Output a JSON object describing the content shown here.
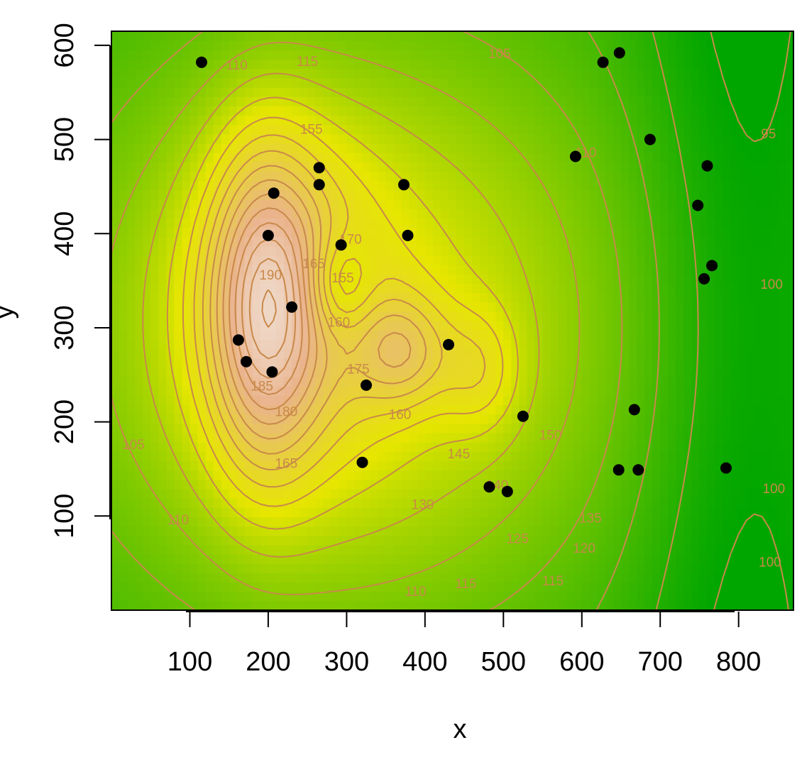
{
  "chart_data": {
    "type": "heatmap",
    "subtype": "filled contour with scatter points",
    "xlabel": "x",
    "ylabel": "y",
    "xlim": [
      0,
      870
    ],
    "ylim": [
      0,
      615
    ],
    "x_ticks": [
      100,
      200,
      300,
      400,
      500,
      600,
      700,
      800
    ],
    "y_ticks": [
      100,
      200,
      300,
      400,
      500,
      600
    ],
    "x_tick_labels": [
      "100",
      "200",
      "300",
      "400",
      "500",
      "600",
      "700",
      "800"
    ],
    "y_tick_labels": [
      "100",
      "200",
      "300",
      "400",
      "500",
      "600"
    ],
    "color_scale": [
      "#00a600",
      "#e6e600",
      "#eab38c",
      "#f2f2f2"
    ],
    "contour_color": "#c8894a",
    "peaks": [
      {
        "x": 195,
        "y": 320,
        "value": 193,
        "sx": 45,
        "sy": 115
      },
      {
        "x": 290,
        "y": 345,
        "value": 155,
        "sx": 30,
        "sy": 38,
        "dip": true
      },
      {
        "x": 370,
        "y": 275,
        "value": 176,
        "sx": 40,
        "sy": 40
      },
      {
        "x": 470,
        "y": 255,
        "value": 165,
        "sx": 35,
        "sy": 45
      }
    ],
    "contour_labels": [
      {
        "text": "110",
        "x": 160,
        "y": 578
      },
      {
        "text": "115",
        "x": 250,
        "y": 582
      },
      {
        "text": "105",
        "x": 495,
        "y": 590
      },
      {
        "text": "155",
        "x": 255,
        "y": 510
      },
      {
        "text": "110",
        "x": 605,
        "y": 485
      },
      {
        "text": "95",
        "x": 838,
        "y": 505
      },
      {
        "text": "170",
        "x": 305,
        "y": 393
      },
      {
        "text": "165",
        "x": 258,
        "y": 367
      },
      {
        "text": "190",
        "x": 203,
        "y": 355
      },
      {
        "text": "155",
        "x": 295,
        "y": 352
      },
      {
        "text": "100",
        "x": 842,
        "y": 345
      },
      {
        "text": "160",
        "x": 290,
        "y": 305
      },
      {
        "text": "175",
        "x": 315,
        "y": 255
      },
      {
        "text": "185",
        "x": 192,
        "y": 237
      },
      {
        "text": "180",
        "x": 223,
        "y": 210
      },
      {
        "text": "160",
        "x": 368,
        "y": 207
      },
      {
        "text": "150",
        "x": 560,
        "y": 185
      },
      {
        "text": "145",
        "x": 443,
        "y": 165
      },
      {
        "text": "165",
        "x": 223,
        "y": 155
      },
      {
        "text": "140",
        "x": 492,
        "y": 132
      },
      {
        "text": "105",
        "x": 28,
        "y": 175
      },
      {
        "text": "130",
        "x": 397,
        "y": 111
      },
      {
        "text": "100",
        "x": 845,
        "y": 128
      },
      {
        "text": "110",
        "x": 85,
        "y": 95
      },
      {
        "text": "135",
        "x": 611,
        "y": 97
      },
      {
        "text": "125",
        "x": 518,
        "y": 75
      },
      {
        "text": "120",
        "x": 603,
        "y": 65
      },
      {
        "text": "100",
        "x": 840,
        "y": 50
      },
      {
        "text": "115",
        "x": 452,
        "y": 27
      },
      {
        "text": "115",
        "x": 563,
        "y": 30
      },
      {
        "text": "110",
        "x": 388,
        "y": 19
      }
    ],
    "points": [
      {
        "x": 115,
        "y": 582
      },
      {
        "x": 265,
        "y": 470
      },
      {
        "x": 265,
        "y": 452
      },
      {
        "x": 207,
        "y": 443
      },
      {
        "x": 373,
        "y": 452
      },
      {
        "x": 200,
        "y": 398
      },
      {
        "x": 293,
        "y": 388
      },
      {
        "x": 378,
        "y": 398
      },
      {
        "x": 230,
        "y": 322
      },
      {
        "x": 162,
        "y": 287
      },
      {
        "x": 172,
        "y": 264
      },
      {
        "x": 205,
        "y": 253
      },
      {
        "x": 430,
        "y": 282
      },
      {
        "x": 325,
        "y": 239
      },
      {
        "x": 525,
        "y": 206
      },
      {
        "x": 320,
        "y": 157
      },
      {
        "x": 482,
        "y": 131
      },
      {
        "x": 505,
        "y": 126
      },
      {
        "x": 647,
        "y": 149
      },
      {
        "x": 672,
        "y": 149
      },
      {
        "x": 667,
        "y": 213
      },
      {
        "x": 784,
        "y": 151
      },
      {
        "x": 592,
        "y": 482
      },
      {
        "x": 627,
        "y": 582
      },
      {
        "x": 648,
        "y": 592
      },
      {
        "x": 687,
        "y": 500
      },
      {
        "x": 760,
        "y": 472
      },
      {
        "x": 748,
        "y": 430
      },
      {
        "x": 766,
        "y": 366
      },
      {
        "x": 756,
        "y": 352
      }
    ]
  }
}
